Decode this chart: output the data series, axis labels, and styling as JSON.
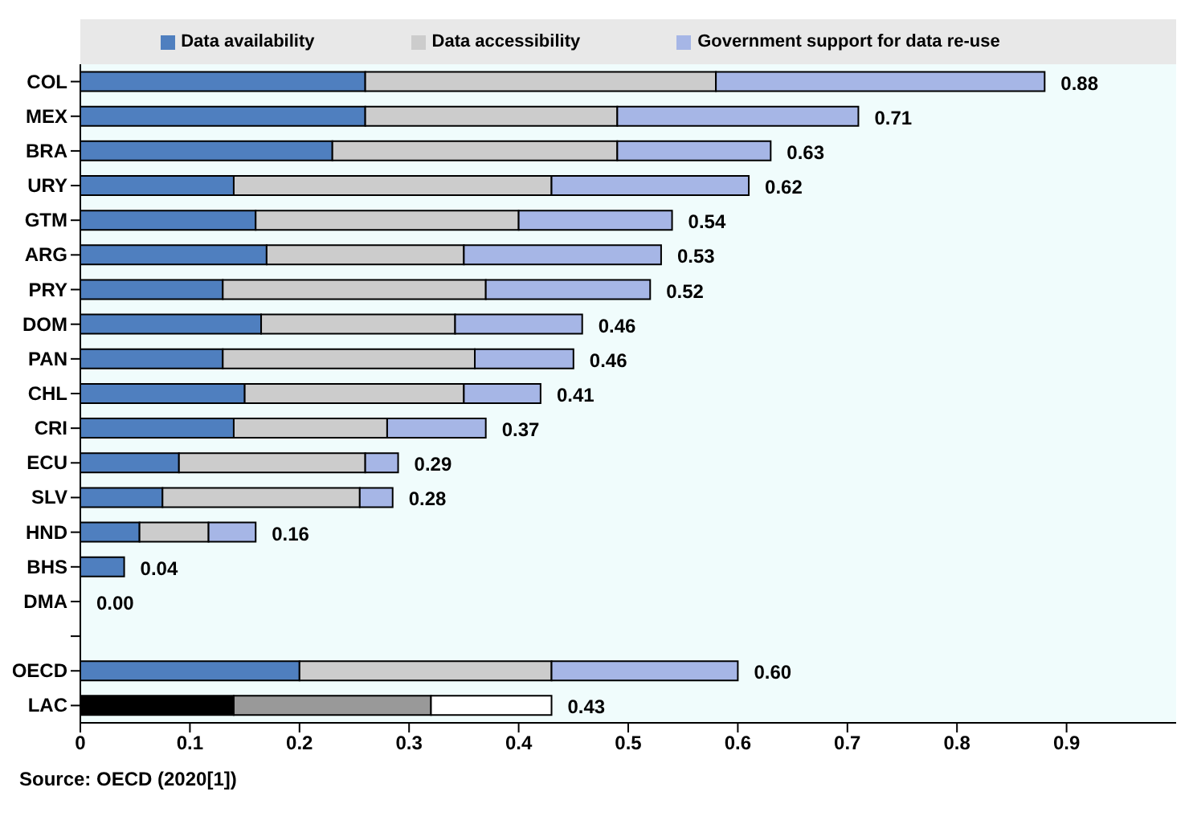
{
  "chart_data": {
    "type": "bar",
    "orientation": "horizontal",
    "stacked": true,
    "categories": [
      "COL",
      "MEX",
      "BRA",
      "URY",
      "GTM",
      "ARG",
      "PRY",
      "DOM",
      "PAN",
      "CHL",
      "CRI",
      "ECU",
      "SLV",
      "HND",
      "BHS",
      "DMA",
      null,
      "OECD",
      "LAC"
    ],
    "series": [
      {
        "name": "Data availability",
        "color": "#4f7fbf",
        "colors": [
          "#4f7fbf",
          "#4f7fbf",
          "#4f7fbf",
          "#4f7fbf",
          "#4f7fbf",
          "#4f7fbf",
          "#4f7fbf",
          "#4f7fbf",
          "#4f7fbf",
          "#4f7fbf",
          "#4f7fbf",
          "#4f7fbf",
          "#4f7fbf",
          "#4f7fbf",
          "#4f7fbf",
          "#4f7fbf",
          "#4f7fbf",
          "#4f7fbf",
          "#000000"
        ],
        "values": [
          0.26,
          0.26,
          0.23,
          0.14,
          0.16,
          0.17,
          0.13,
          0.165,
          0.13,
          0.15,
          0.14,
          0.09,
          0.075,
          0.054,
          0.04,
          0,
          null,
          0.2,
          0.14
        ]
      },
      {
        "name": "Data accessibility",
        "color": "#cccccc",
        "colors": [
          "#cccccc",
          "#cccccc",
          "#cccccc",
          "#cccccc",
          "#cccccc",
          "#cccccc",
          "#cccccc",
          "#cccccc",
          "#cccccc",
          "#cccccc",
          "#cccccc",
          "#cccccc",
          "#cccccc",
          "#cccccc",
          "#cccccc",
          "#cccccc",
          "#cccccc",
          "#cccccc",
          "#999999"
        ],
        "values": [
          0.32,
          0.23,
          0.26,
          0.29,
          0.24,
          0.18,
          0.24,
          0.177,
          0.23,
          0.2,
          0.14,
          0.17,
          0.18,
          0.063,
          0,
          0,
          null,
          0.23,
          0.18
        ]
      },
      {
        "name": "Government support for data re-use",
        "color": "#a6b6e6",
        "colors": [
          "#a6b6e6",
          "#a6b6e6",
          "#a6b6e6",
          "#a6b6e6",
          "#a6b6e6",
          "#a6b6e6",
          "#a6b6e6",
          "#a6b6e6",
          "#a6b6e6",
          "#a6b6e6",
          "#a6b6e6",
          "#a6b6e6",
          "#a6b6e6",
          "#a6b6e6",
          "#a6b6e6",
          "#a6b6e6",
          "#a6b6e6",
          "#a6b6e6",
          "#ffffff"
        ],
        "values": [
          0.3,
          0.22,
          0.14,
          0.18,
          0.14,
          0.18,
          0.15,
          0.116,
          0.09,
          0.07,
          0.09,
          0.03,
          0.03,
          0.043,
          0,
          0,
          null,
          0.17,
          0.11
        ]
      }
    ],
    "totals": [
      "0.88",
      "0.71",
      "0.63",
      "0.62",
      "0.54",
      "0.53",
      "0.52",
      "0.46",
      "0.46",
      "0.41",
      "0.37",
      "0.29",
      "0.28",
      "0.16",
      "0.04",
      "0.00",
      null,
      "0.60",
      "0.43"
    ],
    "xlim": [
      0,
      1
    ],
    "xticks": [
      0,
      0.1,
      0.2,
      0.3,
      0.4,
      0.5,
      0.6,
      0.7,
      0.8,
      0.9
    ],
    "legend": "top",
    "grid": false,
    "annotations": [
      "Source: OECD (2020[1])"
    ]
  }
}
